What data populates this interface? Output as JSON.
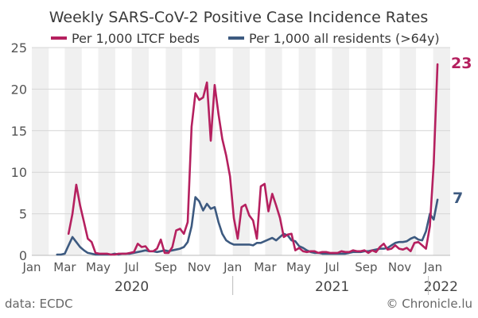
{
  "chart_data": {
    "type": "line",
    "title": "Weekly SARS-CoV-2 Positive Case Incidence Rates",
    "xlabel": "",
    "ylabel": "",
    "ylim": [
      0,
      25
    ],
    "yticks": [
      0,
      5,
      10,
      15,
      20,
      25
    ],
    "xlim": [
      "2020-01-01",
      "2022-02-01"
    ],
    "x_tick_labels": [
      {
        "date": "2020-01-01",
        "label": "Jan"
      },
      {
        "date": "2020-03-01",
        "label": "Mar"
      },
      {
        "date": "2020-05-01",
        "label": "May"
      },
      {
        "date": "2020-07-01",
        "label": "Jul"
      },
      {
        "date": "2020-09-01",
        "label": "Sep"
      },
      {
        "date": "2020-11-01",
        "label": "Nov"
      },
      {
        "date": "2021-01-01",
        "label": "Jan"
      },
      {
        "date": "2021-03-01",
        "label": "Mar"
      },
      {
        "date": "2021-05-01",
        "label": "May"
      },
      {
        "date": "2021-07-01",
        "label": "Jul"
      },
      {
        "date": "2021-09-01",
        "label": "Sep"
      },
      {
        "date": "2021-11-01",
        "label": "Nov"
      },
      {
        "date": "2022-01-01",
        "label": "Jan"
      }
    ],
    "year_labels": [
      {
        "date": "2020-07-01",
        "label": "2020"
      },
      {
        "date": "2021-07-01",
        "label": "2021"
      },
      {
        "date": "2022-01-15",
        "label": "2022"
      }
    ],
    "grid": true,
    "background": "alternating month bands",
    "legend": "top",
    "series": [
      {
        "name": "Per 1,000 LTCF beds",
        "color": "#b5205f",
        "end_label": "23",
        "x": [
          "2020-03-08",
          "2020-03-15",
          "2020-03-22",
          "2020-03-29",
          "2020-04-05",
          "2020-04-12",
          "2020-04-19",
          "2020-04-26",
          "2020-05-03",
          "2020-05-10",
          "2020-05-17",
          "2020-05-24",
          "2020-05-31",
          "2020-06-07",
          "2020-06-14",
          "2020-06-21",
          "2020-06-28",
          "2020-07-05",
          "2020-07-12",
          "2020-07-19",
          "2020-07-26",
          "2020-08-02",
          "2020-08-09",
          "2020-08-16",
          "2020-08-23",
          "2020-08-30",
          "2020-09-06",
          "2020-09-13",
          "2020-09-20",
          "2020-09-27",
          "2020-10-04",
          "2020-10-11",
          "2020-10-18",
          "2020-10-25",
          "2020-11-01",
          "2020-11-08",
          "2020-11-15",
          "2020-11-22",
          "2020-11-29",
          "2020-12-06",
          "2020-12-13",
          "2020-12-20",
          "2020-12-27",
          "2021-01-03",
          "2021-01-10",
          "2021-01-17",
          "2021-01-24",
          "2021-01-31",
          "2021-02-07",
          "2021-02-14",
          "2021-02-21",
          "2021-02-28",
          "2021-03-07",
          "2021-03-14",
          "2021-03-21",
          "2021-03-28",
          "2021-04-04",
          "2021-04-11",
          "2021-04-18",
          "2021-04-25",
          "2021-05-02",
          "2021-05-09",
          "2021-05-16",
          "2021-05-23",
          "2021-05-30",
          "2021-06-06",
          "2021-06-13",
          "2021-06-20",
          "2021-06-27",
          "2021-07-04",
          "2021-07-11",
          "2021-07-18",
          "2021-07-25",
          "2021-08-01",
          "2021-08-08",
          "2021-08-15",
          "2021-08-22",
          "2021-08-29",
          "2021-09-05",
          "2021-09-12",
          "2021-09-19",
          "2021-09-26",
          "2021-10-03",
          "2021-10-10",
          "2021-10-17",
          "2021-10-24",
          "2021-10-31",
          "2021-11-07",
          "2021-11-14",
          "2021-11-21",
          "2021-11-28",
          "2021-12-05",
          "2021-12-12",
          "2021-12-19",
          "2021-12-26",
          "2022-01-02",
          "2022-01-09"
        ],
        "values": [
          2.6,
          5.0,
          8.5,
          6.0,
          4.0,
          2.0,
          1.6,
          0.3,
          0.2,
          0.2,
          0.2,
          0.1,
          0.1,
          0.2,
          0.2,
          0.2,
          0.3,
          0.4,
          1.4,
          1.0,
          1.1,
          0.5,
          0.5,
          0.8,
          1.9,
          0.3,
          0.3,
          1.0,
          3.0,
          3.2,
          2.6,
          4.0,
          15.5,
          19.5,
          18.7,
          19.0,
          20.8,
          13.8,
          20.5,
          17.0,
          14.0,
          12.0,
          9.5,
          4.5,
          2.0,
          5.8,
          6.1,
          4.8,
          4.2,
          2.0,
          8.3,
          8.6,
          5.3,
          7.4,
          6.0,
          4.5,
          2.2,
          2.5,
          2.6,
          0.6,
          0.9,
          0.5,
          0.4,
          0.5,
          0.5,
          0.3,
          0.4,
          0.4,
          0.3,
          0.3,
          0.3,
          0.5,
          0.4,
          0.4,
          0.6,
          0.5,
          0.5,
          0.6,
          0.3,
          0.6,
          0.4,
          1.0,
          1.4,
          0.7,
          0.8,
          1.2,
          0.8,
          0.7,
          0.9,
          0.5,
          1.5,
          1.6,
          1.2,
          0.8,
          3.5,
          11.0,
          23.0
        ]
      },
      {
        "name": "Per 1,000 all residents (>64y)",
        "color": "#3d5a80",
        "end_label": "7",
        "x": [
          "2020-02-16",
          "2020-02-23",
          "2020-03-01",
          "2020-03-08",
          "2020-03-15",
          "2020-03-22",
          "2020-03-29",
          "2020-04-05",
          "2020-04-12",
          "2020-04-19",
          "2020-04-26",
          "2020-05-03",
          "2020-05-10",
          "2020-05-17",
          "2020-05-24",
          "2020-05-31",
          "2020-06-07",
          "2020-06-14",
          "2020-06-21",
          "2020-06-28",
          "2020-07-05",
          "2020-07-12",
          "2020-07-19",
          "2020-07-26",
          "2020-08-02",
          "2020-08-09",
          "2020-08-16",
          "2020-08-23",
          "2020-08-30",
          "2020-09-06",
          "2020-09-13",
          "2020-09-20",
          "2020-09-27",
          "2020-10-04",
          "2020-10-11",
          "2020-10-18",
          "2020-10-25",
          "2020-11-01",
          "2020-11-08",
          "2020-11-15",
          "2020-11-22",
          "2020-11-29",
          "2020-12-06",
          "2020-12-13",
          "2020-12-20",
          "2020-12-27",
          "2021-01-03",
          "2021-01-10",
          "2021-01-17",
          "2021-01-24",
          "2021-01-31",
          "2021-02-07",
          "2021-02-14",
          "2021-02-21",
          "2021-02-28",
          "2021-03-07",
          "2021-03-14",
          "2021-03-21",
          "2021-03-28",
          "2021-04-04",
          "2021-04-11",
          "2021-04-18",
          "2021-04-25",
          "2021-05-02",
          "2021-05-09",
          "2021-05-16",
          "2021-05-23",
          "2021-05-30",
          "2021-06-06",
          "2021-06-13",
          "2021-06-20",
          "2021-06-27",
          "2021-07-04",
          "2021-07-11",
          "2021-07-18",
          "2021-07-25",
          "2021-08-01",
          "2021-08-08",
          "2021-08-15",
          "2021-08-22",
          "2021-08-29",
          "2021-09-05",
          "2021-09-12",
          "2021-09-19",
          "2021-09-26",
          "2021-10-03",
          "2021-10-10",
          "2021-10-17",
          "2021-10-24",
          "2021-10-31",
          "2021-11-07",
          "2021-11-14",
          "2021-11-21",
          "2021-11-28",
          "2021-12-05",
          "2021-12-12",
          "2021-12-19",
          "2021-12-26",
          "2022-01-02",
          "2022-01-09"
        ],
        "values": [
          0.1,
          0.1,
          0.2,
          1.2,
          2.2,
          1.6,
          1.0,
          0.6,
          0.3,
          0.2,
          0.1,
          0.1,
          0.1,
          0.1,
          0.1,
          0.2,
          0.1,
          0.2,
          0.2,
          0.2,
          0.3,
          0.4,
          0.5,
          0.6,
          0.5,
          0.5,
          0.4,
          0.5,
          0.6,
          0.5,
          0.6,
          0.7,
          0.8,
          1.0,
          1.6,
          3.5,
          7.0,
          6.5,
          5.4,
          6.2,
          5.6,
          5.8,
          4.0,
          2.6,
          1.8,
          1.5,
          1.3,
          1.3,
          1.3,
          1.3,
          1.3,
          1.2,
          1.5,
          1.5,
          1.7,
          1.9,
          2.1,
          1.8,
          2.2,
          2.6,
          2.4,
          1.8,
          1.7,
          1.1,
          0.9,
          0.6,
          0.4,
          0.3,
          0.3,
          0.2,
          0.2,
          0.2,
          0.2,
          0.2,
          0.2,
          0.2,
          0.3,
          0.4,
          0.4,
          0.4,
          0.5,
          0.5,
          0.6,
          0.7,
          0.8,
          0.8,
          0.9,
          1.2,
          1.5,
          1.6,
          1.6,
          1.7,
          2.0,
          2.2,
          1.9,
          1.8,
          2.9,
          5.0,
          4.3,
          6.7
        ]
      }
    ]
  },
  "footer": {
    "source": "data: ECDC",
    "credit": "© Chronicle.lu"
  }
}
